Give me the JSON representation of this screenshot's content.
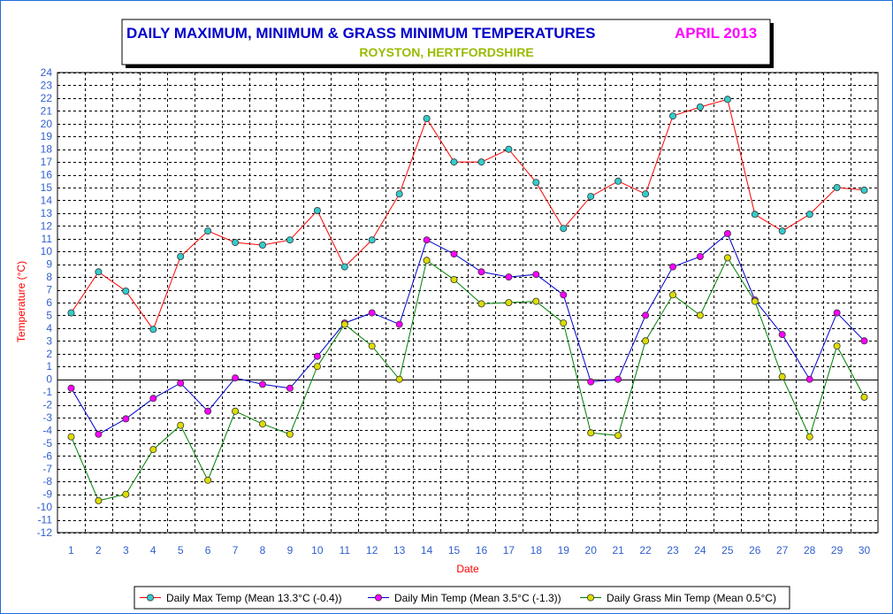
{
  "chart_data": {
    "type": "line",
    "title": "DAILY MAXIMUM, MINIMUM & GRASS MINIMUM TEMPERATURES",
    "period": "APRIL 2013",
    "subtitle": "ROYSTON, HERTFORDSHIRE",
    "xlabel": "Date",
    "ylabel": "Temperature (°C)",
    "ylim": [
      -12,
      24
    ],
    "ytick_step": 1,
    "grid": true,
    "legend_position": "bottom",
    "x": [
      1,
      2,
      3,
      4,
      5,
      6,
      7,
      8,
      9,
      10,
      11,
      12,
      13,
      14,
      15,
      16,
      17,
      18,
      19,
      20,
      21,
      22,
      23,
      24,
      25,
      26,
      27,
      28,
      29,
      30
    ],
    "series": [
      {
        "name": "Daily Max Temp (Mean 13.3°C (-0.4))",
        "line_color": "#ff0000",
        "marker_color": "#33cccc",
        "values": [
          5.2,
          8.4,
          6.9,
          3.9,
          9.6,
          11.6,
          10.7,
          10.5,
          10.9,
          13.2,
          8.8,
          10.9,
          14.5,
          20.4,
          17.0,
          17.0,
          18.0,
          15.4,
          11.8,
          14.3,
          15.5,
          14.5,
          20.6,
          21.3,
          21.9,
          12.9,
          11.6,
          12.9,
          15.0,
          14.8
        ]
      },
      {
        "name": "Daily Min Temp (Mean 3.5°C (-1.3))",
        "line_color": "#0000cc",
        "marker_color": "#ff00ff",
        "values": [
          -0.7,
          -4.3,
          -3.1,
          -1.5,
          -0.3,
          -2.5,
          0.1,
          -0.4,
          -0.7,
          1.8,
          4.4,
          5.2,
          4.3,
          10.9,
          9.8,
          8.4,
          8.0,
          8.2,
          6.6,
          -0.2,
          0.0,
          5.0,
          8.8,
          9.6,
          11.4,
          6.2,
          3.5,
          0.0,
          5.2,
          3.0
        ]
      },
      {
        "name": "Daily Grass Min Temp (Mean 0.5°C)",
        "line_color": "#008000",
        "marker_color": "#dddd00",
        "values": [
          -4.5,
          -9.5,
          -9.0,
          -5.5,
          -3.6,
          -7.9,
          -2.5,
          -3.5,
          -4.3,
          1.0,
          4.3,
          2.6,
          0.0,
          9.3,
          7.8,
          5.9,
          6.0,
          6.1,
          4.4,
          -4.2,
          -4.4,
          3.0,
          6.6,
          5.0,
          9.5,
          6.1,
          0.2,
          -4.5,
          2.6,
          -1.4
        ]
      }
    ]
  }
}
